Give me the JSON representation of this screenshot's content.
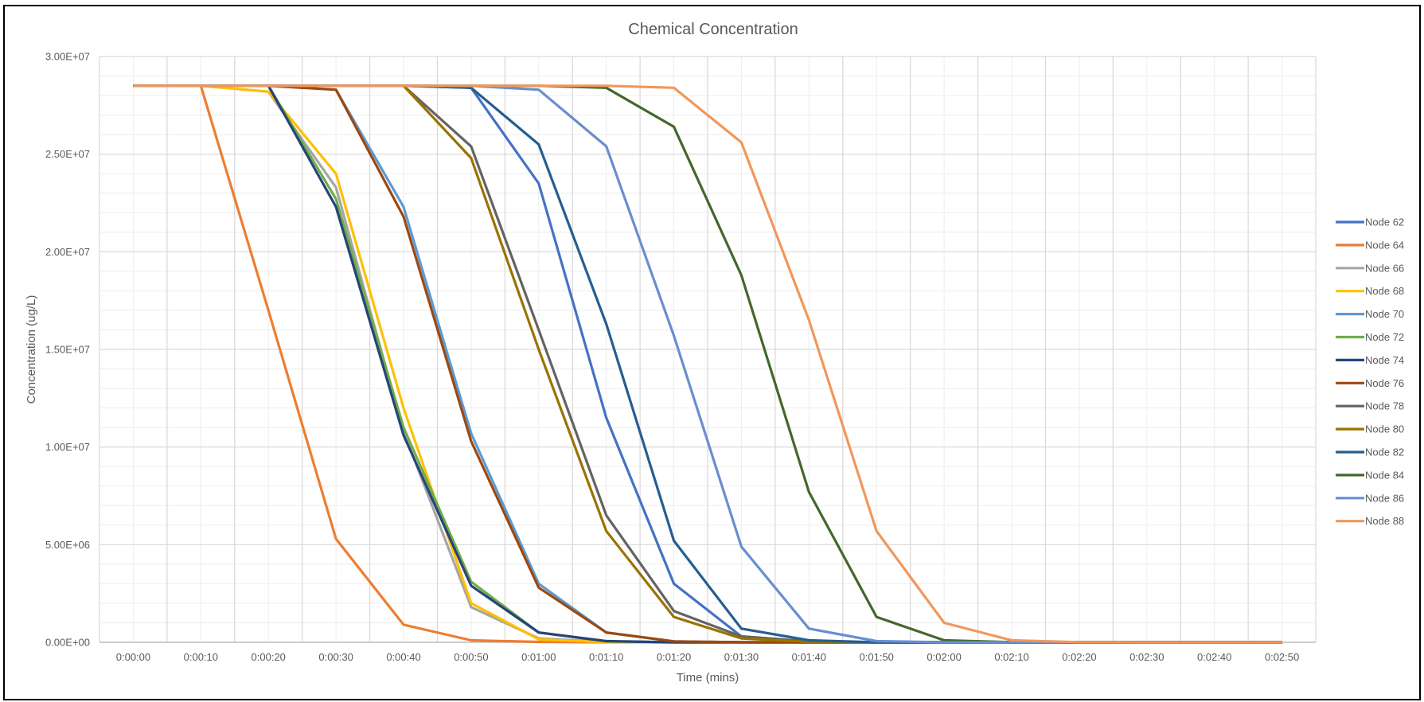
{
  "chart_data": {
    "type": "line",
    "title": "Chemical Concentration",
    "xlabel": "Time (mins)",
    "ylabel": "Concentration (ug/L)",
    "categories": [
      "0:00:00",
      "0:00:10",
      "0:00:20",
      "0:00:30",
      "0:00:40",
      "0:00:50",
      "0:01:00",
      "0:01:10",
      "0:01:20",
      "0:01:30",
      "0:01:40",
      "0:01:50",
      "0:02:00",
      "0:02:10",
      "0:02:20",
      "0:02:30",
      "0:02:40",
      "0:02:50"
    ],
    "ylim": [
      0,
      30000000
    ],
    "yticks": [
      "0.00E+00",
      "5.00E+06",
      "1.00E+07",
      "1.50E+07",
      "2.00E+07",
      "2.50E+07",
      "3.00E+07"
    ],
    "grid": true,
    "legend_position": "right",
    "series": [
      {
        "name": "Node 62",
        "color": "#4472C4",
        "values": [
          28500000,
          28500000,
          28500000,
          28500000,
          28500000,
          28400000,
          23500000,
          11500000,
          3000000,
          300000,
          50000,
          0,
          0,
          0,
          0,
          0,
          0,
          0
        ]
      },
      {
        "name": "Node 64",
        "color": "#ED7D31",
        "values": [
          28500000,
          28500000,
          17000000,
          5300000,
          900000,
          100000,
          20000,
          0,
          0,
          0,
          0,
          0,
          0,
          0,
          0,
          0,
          0,
          0
        ]
      },
      {
        "name": "Node 66",
        "color": "#A5A5A5",
        "values": [
          28500000,
          28500000,
          28200000,
          23300000,
          10800000,
          1800000,
          200000,
          20000,
          0,
          0,
          0,
          0,
          0,
          0,
          0,
          0,
          0,
          0
        ]
      },
      {
        "name": "Node 68",
        "color": "#FFC000",
        "values": [
          28500000,
          28500000,
          28200000,
          24000000,
          12000000,
          2000000,
          150000,
          10000,
          0,
          0,
          0,
          0,
          0,
          0,
          0,
          0,
          0,
          0
        ]
      },
      {
        "name": "Node 70",
        "color": "#5B9BD5",
        "values": [
          28500000,
          28500000,
          28500000,
          28300000,
          22300000,
          10700000,
          3000000,
          500000,
          50000,
          0,
          0,
          0,
          0,
          0,
          0,
          0,
          0,
          0
        ]
      },
      {
        "name": "Node 72",
        "color": "#70AD47",
        "values": [
          28500000,
          28500000,
          28500000,
          22700000,
          11000000,
          3100000,
          500000,
          50000,
          0,
          0,
          0,
          0,
          0,
          0,
          0,
          0,
          0,
          0
        ]
      },
      {
        "name": "Node 74",
        "color": "#264478",
        "values": [
          28500000,
          28500000,
          28500000,
          22300000,
          10600000,
          2900000,
          500000,
          60000,
          0,
          0,
          0,
          0,
          0,
          0,
          0,
          0,
          0,
          0
        ]
      },
      {
        "name": "Node 76",
        "color": "#9E480E",
        "values": [
          28500000,
          28500000,
          28500000,
          28300000,
          21800000,
          10300000,
          2800000,
          500000,
          50000,
          0,
          0,
          0,
          0,
          0,
          0,
          0,
          0,
          0
        ]
      },
      {
        "name": "Node 78",
        "color": "#636363",
        "values": [
          28500000,
          28500000,
          28500000,
          28500000,
          28500000,
          25400000,
          16000000,
          6500000,
          1600000,
          300000,
          50000,
          0,
          0,
          0,
          0,
          0,
          0,
          0
        ]
      },
      {
        "name": "Node 80",
        "color": "#997300",
        "values": [
          28500000,
          28500000,
          28500000,
          28500000,
          28500000,
          24800000,
          15000000,
          5700000,
          1300000,
          200000,
          30000,
          0,
          0,
          0,
          0,
          0,
          0,
          0
        ]
      },
      {
        "name": "Node 82",
        "color": "#255E91",
        "values": [
          28500000,
          28500000,
          28500000,
          28500000,
          28500000,
          28400000,
          25500000,
          16300000,
          5200000,
          700000,
          100000,
          0,
          0,
          0,
          0,
          0,
          0,
          0
        ]
      },
      {
        "name": "Node 84",
        "color": "#43682B",
        "values": [
          28500000,
          28500000,
          28500000,
          28500000,
          28500000,
          28500000,
          28500000,
          28400000,
          26400000,
          18800000,
          7700000,
          1300000,
          100000,
          10000,
          0,
          0,
          0,
          0
        ]
      },
      {
        "name": "Node 86",
        "color": "#698ED0",
        "values": [
          28500000,
          28500000,
          28500000,
          28500000,
          28500000,
          28500000,
          28300000,
          25400000,
          15700000,
          4900000,
          700000,
          60000,
          0,
          0,
          0,
          0,
          0,
          0
        ]
      },
      {
        "name": "Node 88",
        "color": "#F1975A",
        "values": [
          28500000,
          28500000,
          28500000,
          28500000,
          28500000,
          28500000,
          28500000,
          28500000,
          28400000,
          25600000,
          16500000,
          5700000,
          1000000,
          100000,
          10000,
          0,
          0,
          0
        ]
      }
    ]
  }
}
